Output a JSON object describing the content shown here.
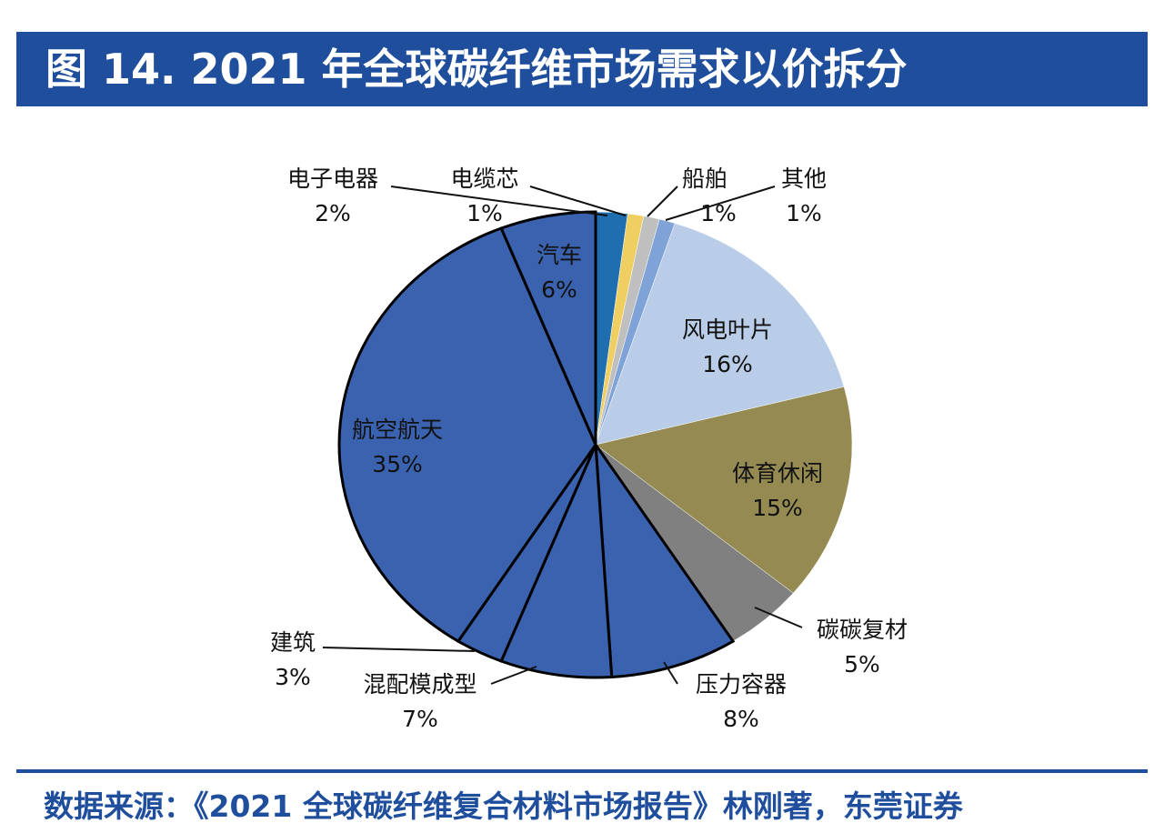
{
  "title": "图 14. 2021 年全球碳纤维市场需求以价拆分",
  "footer": "数据来源：《2021 全球碳纤维复合材料市场报告》林刚著，东莞证券",
  "chart_data": {
    "type": "pie",
    "start": "12 o'clock, clockwise",
    "categories": [
      "电子电器",
      "电缆芯",
      "船舶",
      "其他",
      "风电叶片",
      "体育休闲",
      "碳碳复材",
      "压力容器",
      "混配模成型",
      "建筑",
      "航空航天",
      "汽车"
    ],
    "values": [
      2,
      1,
      1,
      1,
      16,
      15,
      5,
      8,
      7,
      3,
      35,
      6
    ],
    "labels": [
      "2%",
      "1%",
      "1%",
      "1%",
      "16%",
      "15%",
      "5%",
      "8%",
      "7%",
      "3%",
      "35%",
      "6%"
    ],
    "colors": [
      "#1f6fb0",
      "#f0cf62",
      "#bfbfbf",
      "#7fa3d6",
      "#b9cde8",
      "#958b52",
      "#808080",
      "#3a62ae",
      "#3a62ae",
      "#3a62ae",
      "#3a62ae",
      "#3a62ae"
    ],
    "legend": "none (labels beside slices)"
  }
}
